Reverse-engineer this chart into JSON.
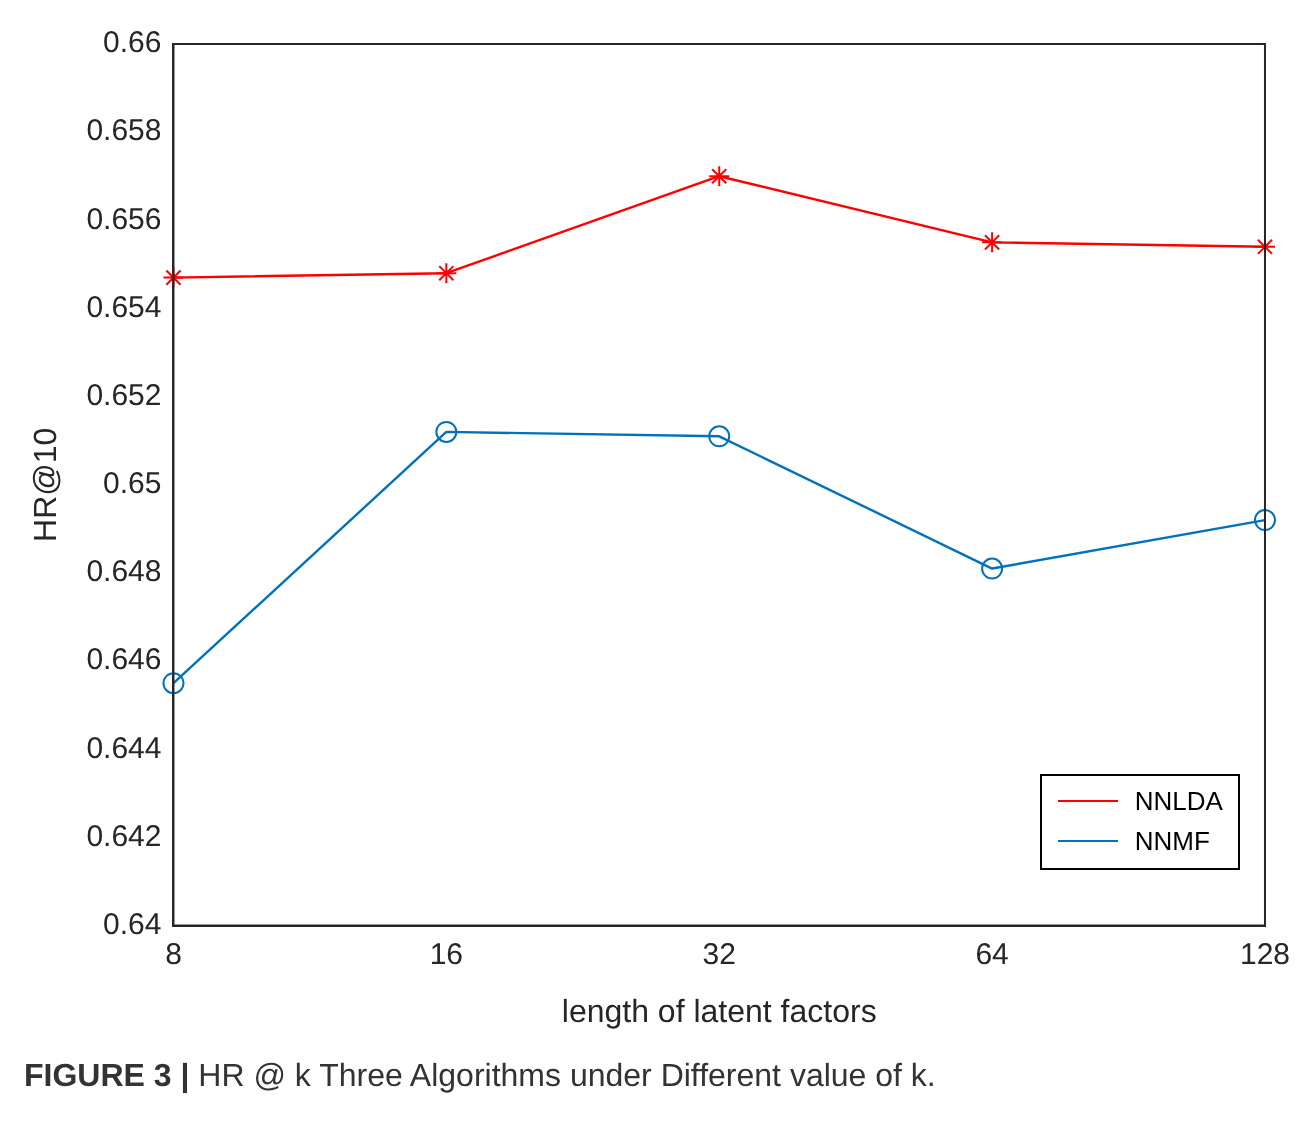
{
  "chart_data": {
    "type": "line",
    "xlabel": "length of latent factors",
    "ylabel": "HR@10",
    "categories": [
      "8",
      "16",
      "32",
      "64",
      "128"
    ],
    "series": [
      {
        "name": "NNLDA",
        "color": "#ff0000",
        "marker": "cross",
        "values": [
          0.6547,
          0.6548,
          0.657,
          0.6555,
          0.6554
        ]
      },
      {
        "name": "NNMF",
        "color": "#0072bd",
        "marker": "circle",
        "values": [
          0.6455,
          0.6512,
          0.6511,
          0.6481,
          0.6492
        ]
      }
    ],
    "ylim": [
      0.64,
      0.66
    ],
    "yticks": [
      0.64,
      0.642,
      0.644,
      0.646,
      0.648,
      0.65,
      0.652,
      0.654,
      0.656,
      0.658,
      0.66
    ],
    "grid": false,
    "legend": "bottom right",
    "line_style": "solid",
    "annotations": [
      "FIGURE 3 | HR @ k Three Algorithms under Different value of k."
    ]
  }
}
